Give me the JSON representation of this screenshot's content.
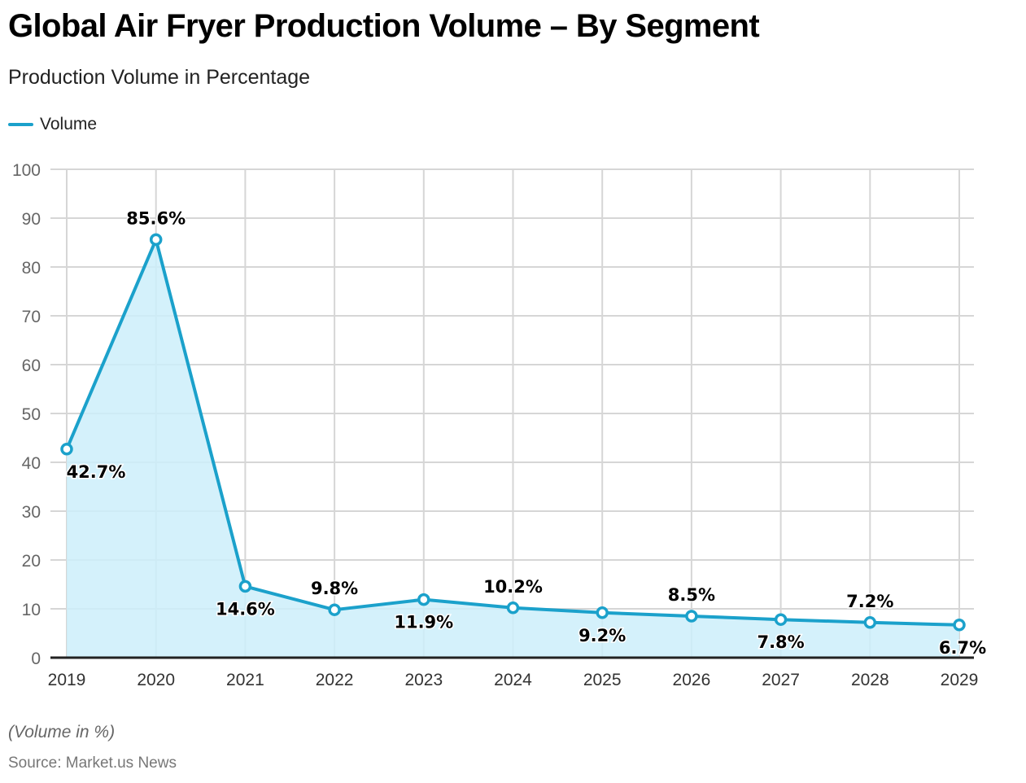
{
  "chart_data": {
    "type": "area",
    "title": "Global Air Fryer Production Volume – By Segment",
    "subtitle": "Production Volume in Percentage",
    "legend": [
      {
        "name": "Volume",
        "color": "#1ba1cb"
      }
    ],
    "legend_position": "top-left",
    "categories": [
      "2019",
      "2020",
      "2021",
      "2022",
      "2023",
      "2024",
      "2025",
      "2026",
      "2027",
      "2028",
      "2029"
    ],
    "series": [
      {
        "name": "Volume",
        "values": [
          42.7,
          85.6,
          14.6,
          9.8,
          11.9,
          10.2,
          9.2,
          8.5,
          7.8,
          7.2,
          6.7
        ],
        "labels": [
          "42.7%",
          "85.6%",
          "14.6%",
          "9.8%",
          "11.9%",
          "10.2%",
          "9.2%",
          "8.5%",
          "7.8%",
          "7.2%",
          "6.7%"
        ],
        "label_positions": [
          "below",
          "above",
          "below",
          "above",
          "below",
          "above",
          "below",
          "above",
          "below",
          "above",
          "below"
        ]
      }
    ],
    "xlabel": "",
    "ylabel": "",
    "ylim": [
      0,
      100
    ],
    "yticks": [
      0,
      10,
      20,
      30,
      40,
      50,
      60,
      70,
      80,
      90,
      100
    ],
    "grid": true,
    "colors": {
      "line": "#1ba1cb",
      "fill": "#cdeefa",
      "grid": "#d6d6d6",
      "axis": "#222222"
    }
  },
  "footer": {
    "note": "(Volume in %)",
    "source": "Source: Market.us News"
  }
}
